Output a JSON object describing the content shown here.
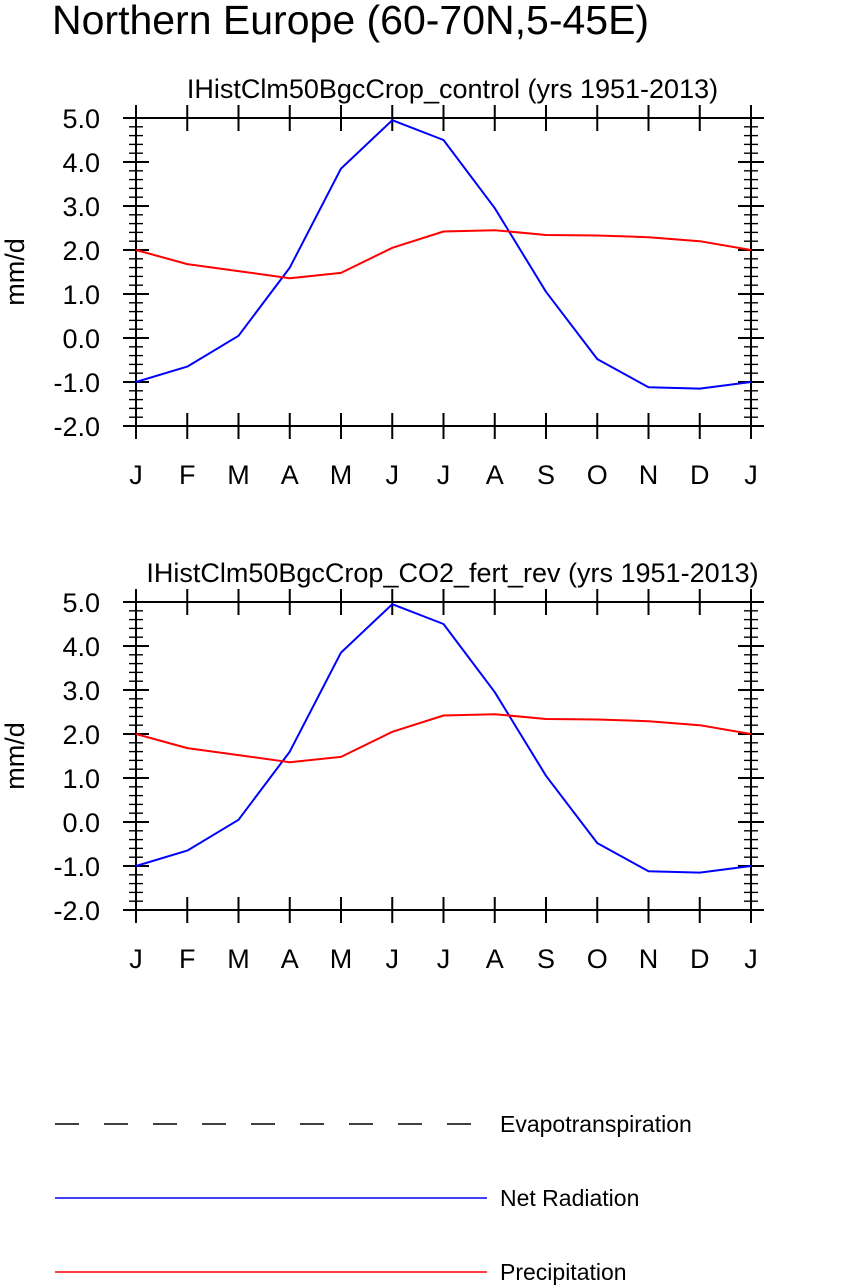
{
  "title": "Northern Europe (60-70N,5-45E)",
  "colors": {
    "net_radiation": "#0000ff",
    "precipitation": "#ff0000",
    "evapotranspiration": "#000000",
    "axes": "#000000"
  },
  "legend": {
    "placement": "bottom",
    "entries": [
      {
        "label": "Evapotranspiration",
        "style": "dashed",
        "color_key": "evapotranspiration"
      },
      {
        "label": "Net Radiation",
        "style": "solid",
        "color_key": "net_radiation"
      },
      {
        "label": "Precipitation",
        "style": "solid",
        "color_key": "precipitation"
      }
    ]
  },
  "chart_data": [
    {
      "type": "line",
      "title": "IHistClm50BgcCrop_control (yrs 1951-2013)",
      "xlabel": "",
      "ylabel": "mm/d",
      "ylim": [
        -2.0,
        5.0
      ],
      "yticks": [
        "5.0",
        "4.0",
        "3.0",
        "2.0",
        "1.0",
        "0.0",
        "-1.0",
        "-2.0"
      ],
      "ytick_values": [
        5.0,
        4.0,
        3.0,
        2.0,
        1.0,
        0.0,
        -1.0,
        -2.0
      ],
      "categories": [
        "J",
        "F",
        "M",
        "A",
        "M",
        "J",
        "J",
        "A",
        "S",
        "O",
        "N",
        "D",
        "J"
      ],
      "grid": false,
      "series": [
        {
          "name": "Net Radiation",
          "color_key": "net_radiation",
          "values": [
            -1.0,
            -0.65,
            0.05,
            1.6,
            3.85,
            4.95,
            4.5,
            2.95,
            1.05,
            -0.48,
            -1.12,
            -1.15,
            -1.0
          ]
        },
        {
          "name": "Precipitation",
          "color_key": "precipitation",
          "values": [
            2.0,
            1.68,
            1.52,
            1.36,
            1.48,
            2.05,
            2.42,
            2.45,
            2.34,
            2.33,
            2.29,
            2.2,
            2.0
          ]
        }
      ]
    },
    {
      "type": "line",
      "title": "IHistClm50BgcCrop_CO2_fert_rev (yrs 1951-2013)",
      "xlabel": "",
      "ylabel": "mm/d",
      "ylim": [
        -2.0,
        5.0
      ],
      "yticks": [
        "5.0",
        "4.0",
        "3.0",
        "2.0",
        "1.0",
        "0.0",
        "-1.0",
        "-2.0"
      ],
      "ytick_values": [
        5.0,
        4.0,
        3.0,
        2.0,
        1.0,
        0.0,
        -1.0,
        -2.0
      ],
      "categories": [
        "J",
        "F",
        "M",
        "A",
        "M",
        "J",
        "J",
        "A",
        "S",
        "O",
        "N",
        "D",
        "J"
      ],
      "grid": false,
      "series": [
        {
          "name": "Net Radiation",
          "color_key": "net_radiation",
          "values": [
            -1.0,
            -0.65,
            0.05,
            1.6,
            3.85,
            4.95,
            4.5,
            2.95,
            1.05,
            -0.48,
            -1.12,
            -1.15,
            -1.0
          ]
        },
        {
          "name": "Precipitation",
          "color_key": "precipitation",
          "values": [
            2.0,
            1.68,
            1.52,
            1.36,
            1.48,
            2.05,
            2.42,
            2.45,
            2.34,
            2.33,
            2.29,
            2.2,
            2.0
          ]
        }
      ]
    }
  ]
}
